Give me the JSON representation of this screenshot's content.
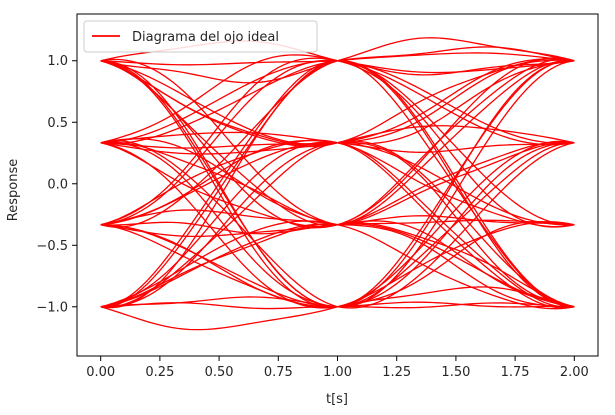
{
  "chart_data": {
    "type": "line",
    "title": "",
    "xlabel": "t[s]",
    "ylabel": "Response",
    "xlim": [
      -0.1,
      2.1
    ],
    "ylim": [
      -1.4,
      1.38
    ],
    "xticks": [
      0.0,
      0.25,
      0.5,
      0.75,
      1.0,
      1.25,
      1.5,
      1.75,
      2.0
    ],
    "xtick_labels": [
      "0.00",
      "0.25",
      "0.50",
      "0.75",
      "1.00",
      "1.25",
      "1.50",
      "1.75",
      "2.00"
    ],
    "yticks": [
      1.0,
      0.5,
      0.0,
      -0.5,
      -1.0
    ],
    "ytick_labels": [
      "1.0",
      "0.5",
      "0.0",
      "−0.5",
      "−1.0"
    ],
    "grid": false,
    "legend": {
      "placement": "top-left",
      "entries": [
        "Diagrama del ojo ideal"
      ]
    },
    "series": [
      {
        "name": "Diagrama del ojo ideal",
        "color": "#ff0000",
        "symbol_levels": [
          -1.0,
          -0.3333,
          0.3333,
          1.0
        ],
        "symbol_period": 1.0,
        "samples_per_trace": 2.0
      }
    ]
  }
}
